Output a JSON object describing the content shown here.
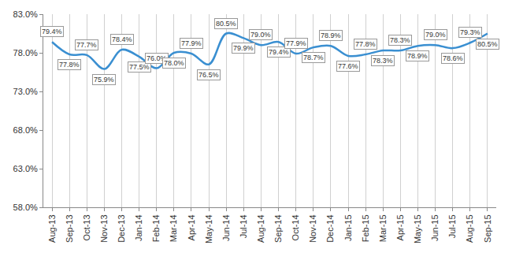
{
  "chart_data": {
    "type": "line",
    "categories": [
      "Aug-13",
      "Sep-13",
      "Oct-13",
      "Nov-13",
      "Dec-13",
      "Jan-14",
      "Feb-14",
      "Mar-14",
      "Apr-14",
      "May-14",
      "Jun-14",
      "Jul-14",
      "Aug-14",
      "Sep-14",
      "Oct-14",
      "Nov-14",
      "Dec-14",
      "Jan-15",
      "Feb-15",
      "Mar-15",
      "Apr-15",
      "May-15",
      "Jun-15",
      "Jul-15",
      "Aug-15",
      "Sep-15"
    ],
    "values": [
      79.4,
      77.8,
      77.7,
      75.9,
      78.4,
      77.5,
      76.0,
      78.0,
      77.9,
      76.5,
      80.5,
      79.9,
      79.0,
      79.4,
      77.9,
      78.7,
      78.9,
      77.6,
      77.8,
      78.3,
      78.3,
      78.9,
      79.0,
      78.6,
      79.3,
      80.5
    ],
    "value_labels": [
      "79.4%",
      "77.8%",
      "77.7%",
      "75.9%",
      "78.4%",
      "77.5%",
      "76.0%",
      "78.0%",
      "77.9%",
      "76.5%",
      "80.5%",
      "79.9%",
      "79.0%",
      "79.4%",
      "77.9%",
      "78.7%",
      "78.9%",
      "77.6%",
      "77.8%",
      "78.3%",
      "78.3%",
      "78.9%",
      "79.0%",
      "78.6%",
      "79.3%",
      "80.5%"
    ],
    "color": "#3a8fd1",
    "line_style": "smooth",
    "data_labels": true,
    "ylim": [
      58,
      83
    ],
    "yticks": [
      {
        "value": 58,
        "label": "58.0%"
      },
      {
        "value": 63,
        "label": "63.0%"
      },
      {
        "value": 68,
        "label": "68.0%"
      },
      {
        "value": 73,
        "label": "73.0%"
      },
      {
        "value": 78,
        "label": "78.0%"
      },
      {
        "value": 83,
        "label": "83.0%"
      }
    ],
    "grid": true
  }
}
